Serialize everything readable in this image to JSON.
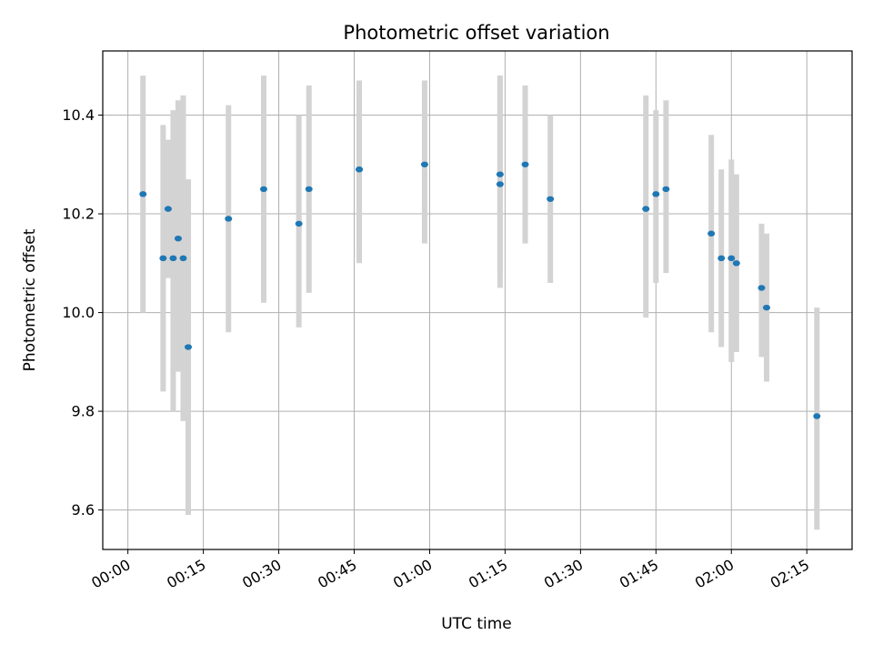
{
  "chart_data": {
    "type": "scatter",
    "title": "Photometric offset variation",
    "xlabel": "UTC time",
    "ylabel": "Photometric offset",
    "x_unit": "UTC time (HH:MM)",
    "xlim": [
      "23:55",
      "02:24"
    ],
    "ylim": [
      9.52,
      10.53
    ],
    "x_ticks": [
      "00:00",
      "00:15",
      "00:30",
      "00:45",
      "01:00",
      "01:15",
      "01:30",
      "01:45",
      "02:00",
      "02:15"
    ],
    "y_ticks": [
      "9.6",
      "9.8",
      "10.0",
      "10.2",
      "10.4"
    ],
    "grid": true,
    "colors": {
      "point": "#1f77b4",
      "errorbar": "#d3d3d3",
      "grid": "#b0b0b0"
    },
    "series": [
      {
        "points": [
          {
            "x": "00:03",
            "y": 10.24,
            "low": 10.0,
            "high": 10.48
          },
          {
            "x": "00:07",
            "y": 10.11,
            "low": 9.84,
            "high": 10.38
          },
          {
            "x": "00:08",
            "y": 10.21,
            "low": 10.07,
            "high": 10.35
          },
          {
            "x": "00:09",
            "y": 10.11,
            "low": 9.8,
            "high": 10.41
          },
          {
            "x": "00:10",
            "y": 10.15,
            "low": 9.88,
            "high": 10.43
          },
          {
            "x": "00:11",
            "y": 10.11,
            "low": 9.78,
            "high": 10.44
          },
          {
            "x": "00:12",
            "y": 9.93,
            "low": 9.59,
            "high": 10.27
          },
          {
            "x": "00:20",
            "y": 10.19,
            "low": 9.96,
            "high": 10.42
          },
          {
            "x": "00:27",
            "y": 10.25,
            "low": 10.02,
            "high": 10.48
          },
          {
            "x": "00:34",
            "y": 10.18,
            "low": 9.97,
            "high": 10.4
          },
          {
            "x": "00:36",
            "y": 10.25,
            "low": 10.04,
            "high": 10.46
          },
          {
            "x": "00:46",
            "y": 10.29,
            "low": 10.1,
            "high": 10.47
          },
          {
            "x": "00:46",
            "y": 10.29,
            "low": 10.13,
            "high": 10.44
          },
          {
            "x": "00:59",
            "y": 10.3,
            "low": 10.14,
            "high": 10.47
          },
          {
            "x": "01:14",
            "y": 10.26,
            "low": 10.05,
            "high": 10.48
          },
          {
            "x": "01:14",
            "y": 10.28,
            "low": 10.08,
            "high": 10.48
          },
          {
            "x": "01:19",
            "y": 10.3,
            "low": 10.14,
            "high": 10.46
          },
          {
            "x": "01:24",
            "y": 10.23,
            "low": 10.06,
            "high": 10.4
          },
          {
            "x": "01:43",
            "y": 10.21,
            "low": 9.99,
            "high": 10.44
          },
          {
            "x": "01:45",
            "y": 10.24,
            "low": 10.06,
            "high": 10.41
          },
          {
            "x": "01:47",
            "y": 10.25,
            "low": 10.08,
            "high": 10.43
          },
          {
            "x": "01:56",
            "y": 10.16,
            "low": 9.96,
            "high": 10.36
          },
          {
            "x": "01:58",
            "y": 10.11,
            "low": 9.93,
            "high": 10.29
          },
          {
            "x": "02:00",
            "y": 10.11,
            "low": 9.9,
            "high": 10.31
          },
          {
            "x": "02:01",
            "y": 10.1,
            "low": 9.92,
            "high": 10.28
          },
          {
            "x": "02:06",
            "y": 10.05,
            "low": 9.91,
            "high": 10.18
          },
          {
            "x": "02:07",
            "y": 10.01,
            "low": 9.86,
            "high": 10.16
          },
          {
            "x": "02:17",
            "y": 9.79,
            "low": 9.56,
            "high": 10.01
          }
        ]
      }
    ]
  }
}
